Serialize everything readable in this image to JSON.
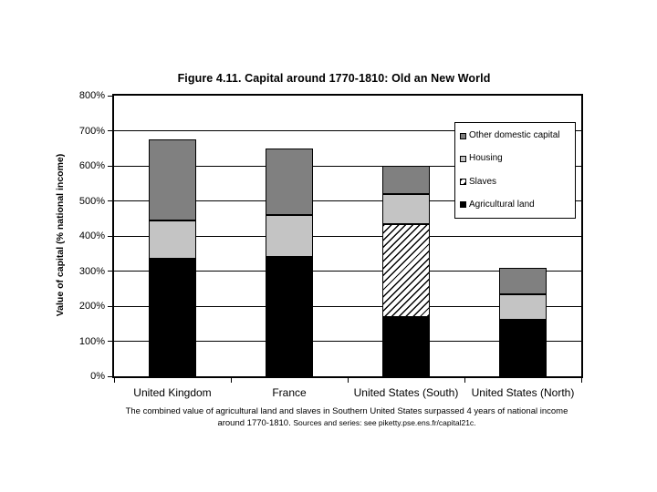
{
  "chart_data": {
    "type": "bar",
    "stacked": true,
    "title": "Figure 4.11. Capital around 1770-1810: Old an New World",
    "ylabel": "Value of capital (% national income)",
    "xlabel": "",
    "ylim": [
      0,
      800
    ],
    "grid": true,
    "legend_position": "top-right-inside",
    "yticks": [
      {
        "value": 0,
        "label": "0%"
      },
      {
        "value": 100,
        "label": "100%"
      },
      {
        "value": 200,
        "label": "200%"
      },
      {
        "value": 300,
        "label": "300%"
      },
      {
        "value": 400,
        "label": "400%"
      },
      {
        "value": 500,
        "label": "500%"
      },
      {
        "value": 600,
        "label": "600%"
      },
      {
        "value": 700,
        "label": "700%"
      },
      {
        "value": 800,
        "label": "800%"
      }
    ],
    "categories": [
      "United Kingdom",
      "France",
      "United States (South)",
      "United States (North)"
    ],
    "series": [
      {
        "name": "Other domestic capital",
        "fill": "#808080",
        "values": [
          230,
          190,
          80,
          75
        ]
      },
      {
        "name": "Housing",
        "fill": "#c4c4c4",
        "values": [
          110,
          120,
          85,
          75
        ]
      },
      {
        "name": "Slaves",
        "fill": "hatch",
        "values": [
          0,
          0,
          265,
          0
        ]
      },
      {
        "name": "Agricultural land",
        "fill": "#000000",
        "values": [
          335,
          340,
          170,
          160
        ]
      }
    ],
    "totals": [
      675,
      650,
      600,
      310
    ]
  },
  "caption": {
    "line1": "The combined value of agricultural land and slaves in Southern United States surpassed 4 years of national income",
    "line2": "around 1770-1810.",
    "source": "Sources and series: see piketty.pse.ens.fr/capital21c."
  },
  "colors": {
    "axis": "#000000",
    "background": "#ffffff",
    "other_domestic_capital": "#808080",
    "housing": "#c4c4c4",
    "slaves_pattern": "black-diagonal-hatch-on-white",
    "agricultural_land": "#000000"
  }
}
